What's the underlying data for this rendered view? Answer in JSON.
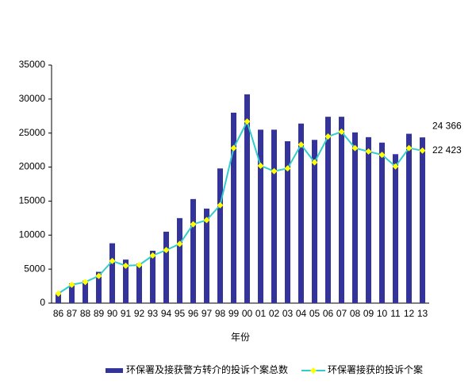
{
  "chart_data": {
    "type": "bar-line",
    "x_label": "年份",
    "categories": [
      "86",
      "87",
      "88",
      "89",
      "90",
      "91",
      "92",
      "93",
      "94",
      "95",
      "96",
      "97",
      "98",
      "99",
      "00",
      "01",
      "02",
      "03",
      "04",
      "05",
      "06",
      "07",
      "08",
      "09",
      "10",
      "11",
      "12",
      "13"
    ],
    "series": [
      {
        "name": "环保署及接获警方转介的投诉个案总数",
        "type": "bar",
        "color": "#333399",
        "values": [
          1500,
          2900,
          3300,
          4600,
          8800,
          6400,
          5800,
          7700,
          10500,
          12500,
          15300,
          13900,
          19800,
          28000,
          30700,
          25500,
          25500,
          23800,
          26400,
          24000,
          27400,
          27400,
          25100,
          24400,
          23600,
          21900,
          24900,
          24366
        ],
        "value_labels": [
          null,
          null,
          null,
          null,
          null,
          null,
          null,
          null,
          null,
          null,
          null,
          null,
          null,
          null,
          null,
          null,
          null,
          null,
          null,
          null,
          null,
          null,
          null,
          null,
          null,
          null,
          null,
          "24 366"
        ]
      },
      {
        "name": "环保署接获的投诉个案",
        "type": "line",
        "color": "#33cccc",
        "marker_color": "#ffff00",
        "values": [
          1400,
          2700,
          3100,
          4000,
          6200,
          5500,
          5600,
          7000,
          7800,
          8700,
          11600,
          12200,
          14400,
          22800,
          26700,
          20200,
          19400,
          19800,
          23300,
          20700,
          24500,
          25200,
          22800,
          22300,
          21800,
          20100,
          22800,
          22423
        ],
        "value_labels": [
          null,
          null,
          null,
          null,
          null,
          null,
          null,
          null,
          null,
          null,
          null,
          null,
          null,
          null,
          null,
          null,
          null,
          null,
          null,
          null,
          null,
          null,
          null,
          null,
          null,
          null,
          null,
          "22 423"
        ]
      }
    ],
    "ylim": [
      0,
      35000
    ],
    "yticks": [
      0,
      5000,
      10000,
      15000,
      20000,
      25000,
      30000,
      35000
    ],
    "grid": false
  }
}
